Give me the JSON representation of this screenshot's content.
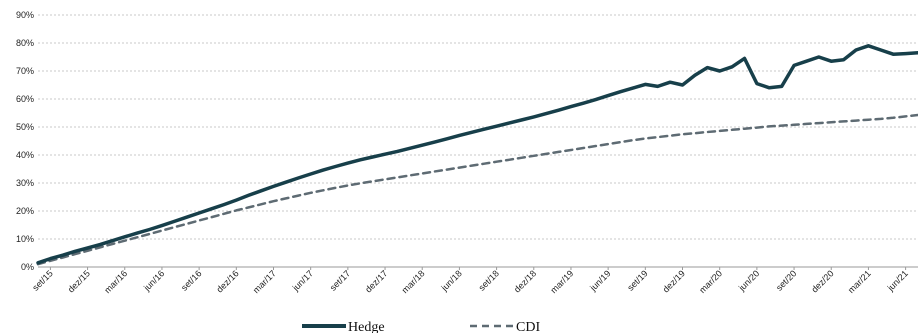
{
  "chart_data": {
    "type": "line",
    "title": "",
    "xlabel": "",
    "ylabel": "",
    "ylim": [
      0,
      90
    ],
    "y_ticks": [
      "0%",
      "10%",
      "20%",
      "30%",
      "40%",
      "50%",
      "60%",
      "70%",
      "80%",
      "90%"
    ],
    "grid": true,
    "legend_position": "bottom-center",
    "x_labels": [
      "set/15",
      "dez/15",
      "mar/16",
      "jun/16",
      "set/16",
      "dez/16",
      "mar/17",
      "jun/17",
      "set/17",
      "dez/17",
      "mar/18",
      "jun/18",
      "set/18",
      "dez/18",
      "mar/19",
      "jun/19",
      "set/19",
      "dez/19",
      "mar/20",
      "jun/20",
      "set/20",
      "dez/20",
      "mar/21",
      "jun/21"
    ],
    "x": [
      "ago/15",
      "set/15",
      "out/15",
      "nov/15",
      "dez/15",
      "jan/16",
      "fev/16",
      "mar/16",
      "abr/16",
      "mai/16",
      "jun/16",
      "jul/16",
      "ago/16",
      "set/16",
      "out/16",
      "nov/16",
      "dez/16",
      "jan/17",
      "fev/17",
      "mar/17",
      "abr/17",
      "mai/17",
      "jun/17",
      "jul/17",
      "ago/17",
      "set/17",
      "out/17",
      "nov/17",
      "dez/17",
      "jan/18",
      "fev/18",
      "mar/18",
      "abr/18",
      "mai/18",
      "jun/18",
      "jul/18",
      "ago/18",
      "set/18",
      "out/18",
      "nov/18",
      "dez/18",
      "jan/19",
      "fev/19",
      "mar/19",
      "abr/19",
      "mai/19",
      "jun/19",
      "jul/19",
      "ago/19",
      "set/19",
      "out/19",
      "nov/19",
      "dez/19",
      "jan/20",
      "fev/20",
      "mar/20",
      "abr/20",
      "mai/20",
      "jun/20",
      "jul/20",
      "ago/20",
      "set/20",
      "out/20",
      "nov/20",
      "dez/20",
      "jan/21",
      "fev/21",
      "mar/21",
      "abr/21",
      "mai/21",
      "jun/21",
      "jul/21"
    ],
    "series": [
      {
        "name": "Hedge",
        "color": "#173f4a",
        "style": "solid",
        "values": [
          1.5,
          3.0,
          4.2,
          5.6,
          6.8,
          8.0,
          9.4,
          10.8,
          12.1,
          13.4,
          14.8,
          16.3,
          17.8,
          19.3,
          20.8,
          22.3,
          23.9,
          25.6,
          27.2,
          28.8,
          30.3,
          31.8,
          33.2,
          34.6,
          35.9,
          37.1,
          38.3,
          39.3,
          40.3,
          41.3,
          42.4,
          43.5,
          44.6,
          45.8,
          47.0,
          48.1,
          49.2,
          50.3,
          51.4,
          52.5,
          53.6,
          54.8,
          56.0,
          57.3,
          58.5,
          59.8,
          61.2,
          62.6,
          63.9,
          65.2,
          64.5,
          66.0,
          65.0,
          68.5,
          71.2,
          70.0,
          71.5,
          74.5,
          65.5,
          64.0,
          64.5,
          72.0,
          73.5,
          75.0,
          73.5,
          74.0,
          77.5,
          79.0,
          77.5,
          76.0,
          76.2,
          76.5
        ],
        "__note_unused": ""
      },
      {
        "name": "CDI",
        "color": "#5e6b73",
        "style": "dashed",
        "values": [
          1.0,
          2.2,
          3.4,
          4.6,
          5.8,
          7.0,
          8.2,
          9.4,
          10.6,
          11.8,
          13.0,
          14.2,
          15.4,
          16.6,
          17.8,
          19.0,
          20.2,
          21.3,
          22.4,
          23.5,
          24.5,
          25.5,
          26.5,
          27.4,
          28.3,
          29.1,
          29.9,
          30.6,
          31.3,
          32.0,
          32.7,
          33.4,
          34.1,
          34.8,
          35.5,
          36.2,
          36.9,
          37.6,
          38.3,
          39.0,
          39.7,
          40.4,
          41.1,
          41.8,
          42.5,
          43.2,
          43.9,
          44.6,
          45.3,
          45.9,
          46.4,
          46.9,
          47.4,
          47.8,
          48.2,
          48.6,
          49.0,
          49.4,
          49.8,
          50.2,
          50.5,
          50.8,
          51.1,
          51.4,
          51.7,
          52.0,
          52.3,
          52.6,
          52.9,
          53.3,
          53.8,
          54.3
        ]
      }
    ]
  }
}
